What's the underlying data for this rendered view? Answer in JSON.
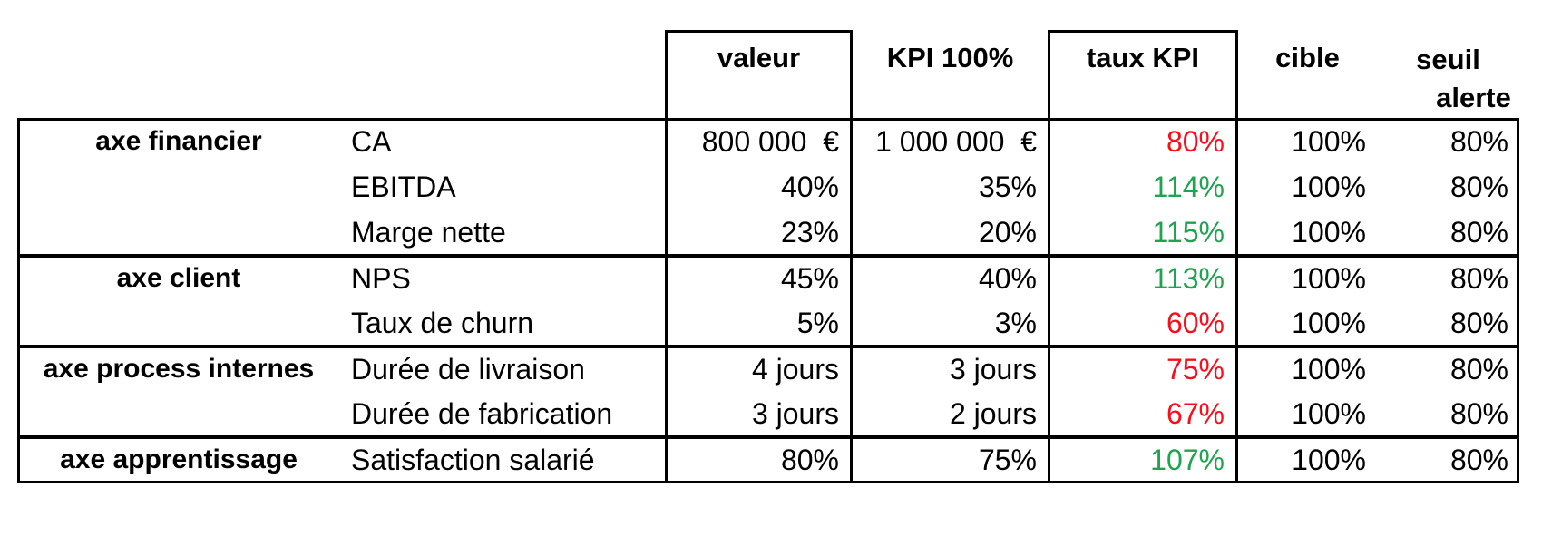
{
  "colors": {
    "good": "#1fa34f",
    "bad": "#fb0c1a",
    "border": "#000000",
    "background": "#ffffff"
  },
  "headers": {
    "valeur": "valeur",
    "kpi100": "KPI 100%",
    "taux": "taux KPI",
    "cible": "cible",
    "seuil_line1": "seuil",
    "seuil_line2": "alerte"
  },
  "rows": [
    {
      "axe": "axe financier",
      "indicator": "CA",
      "valeur": "800 000  €",
      "kpi100": "1 000 000  €",
      "taux": "80%",
      "taux_status": "bad",
      "cible": "100%",
      "seuil": "80%"
    },
    {
      "axe": "",
      "indicator": "EBITDA",
      "valeur": "40%",
      "kpi100": "35%",
      "taux": "114%",
      "taux_status": "good",
      "cible": "100%",
      "seuil": "80%"
    },
    {
      "axe": "",
      "indicator": "Marge nette",
      "valeur": "23%",
      "kpi100": "20%",
      "taux": "115%",
      "taux_status": "good",
      "cible": "100%",
      "seuil": "80%"
    },
    {
      "axe": "axe client",
      "indicator": "NPS",
      "valeur": "45%",
      "kpi100": "40%",
      "taux": "113%",
      "taux_status": "good",
      "cible": "100%",
      "seuil": "80%"
    },
    {
      "axe": "",
      "indicator": "Taux de churn",
      "valeur": "5%",
      "kpi100": "3%",
      "taux": "60%",
      "taux_status": "bad",
      "cible": "100%",
      "seuil": "80%"
    },
    {
      "axe": "axe process internes",
      "indicator": "Durée de livraison",
      "valeur": "4 jours",
      "kpi100": "3 jours",
      "taux": "75%",
      "taux_status": "bad",
      "cible": "100%",
      "seuil": "80%"
    },
    {
      "axe": "",
      "indicator": "Durée de fabrication",
      "valeur": "3 jours",
      "kpi100": "2 jours",
      "taux": "67%",
      "taux_status": "bad",
      "cible": "100%",
      "seuil": "80%"
    },
    {
      "axe": "axe apprentissage",
      "indicator": "Satisfaction salarié",
      "valeur": "80%",
      "kpi100": "75%",
      "taux": "107%",
      "taux_status": "good",
      "cible": "100%",
      "seuil": "80%"
    }
  ]
}
